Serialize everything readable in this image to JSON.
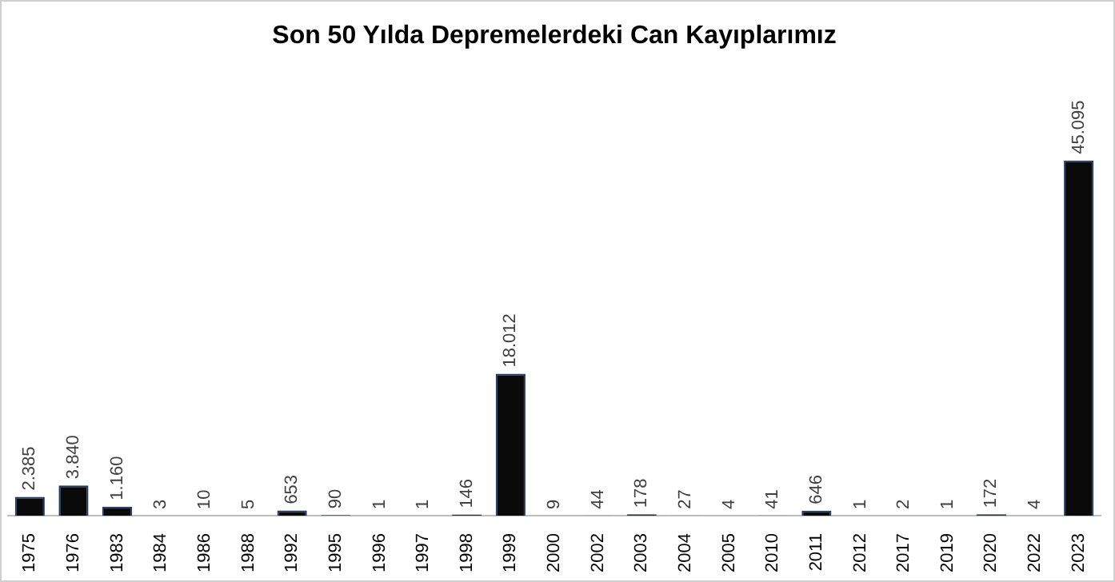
{
  "chart_data": {
    "type": "bar",
    "title": "Son 50 Yılda Depremelerdeki Can Kayıplarımız",
    "categories": [
      "1975",
      "1976",
      "1983",
      "1984",
      "1986",
      "1988",
      "1992",
      "1995",
      "1996",
      "1997",
      "1998",
      "1999",
      "2000",
      "2002",
      "2003",
      "2004",
      "2005",
      "2010",
      "2011",
      "2012",
      "2017",
      "2019",
      "2020",
      "2022",
      "2023"
    ],
    "values": [
      2385,
      3840,
      1160,
      3,
      10,
      5,
      653,
      90,
      1,
      1,
      146,
      18012,
      9,
      44,
      178,
      27,
      4,
      41,
      646,
      1,
      2,
      1,
      172,
      4,
      45095
    ],
    "value_labels": [
      "2.385",
      "3.840",
      "1.160",
      "3",
      "10",
      "5",
      "653",
      "90",
      "1",
      "1",
      "146",
      "18.012",
      "9",
      "44",
      "178",
      "27",
      "4",
      "41",
      "646",
      "1",
      "2",
      "1",
      "172",
      "4",
      "45.095"
    ],
    "color": "#0a0a0a",
    "grid": false,
    "legend": false
  }
}
